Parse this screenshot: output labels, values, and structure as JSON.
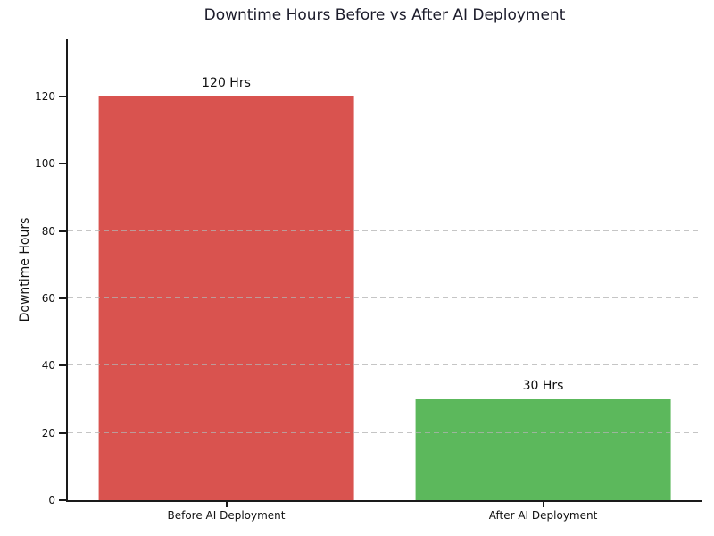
{
  "chart_data": {
    "type": "bar",
    "title": "Downtime Hours Before vs After AI Deployment",
    "categories": [
      "Before AI Deployment",
      "After AI Deployment"
    ],
    "values": [
      120,
      30
    ],
    "bar_labels": [
      "120 Hrs",
      "30 Hrs"
    ],
    "bar_colors": [
      "#d9534f",
      "#5cb85c"
    ],
    "xlabel": "",
    "ylabel": "Downtime Hours",
    "ylim": [
      0,
      137
    ],
    "yticks": [
      0,
      20,
      40,
      60,
      80,
      100,
      120
    ],
    "grid": "horizontal-dashed",
    "legend": "none"
  },
  "colors": {
    "background": "#ffffff",
    "bar_before": "#d9534f",
    "bar_after": "#5cb85c",
    "gridline": "#b2b2b2",
    "axis": "#1a1a1a",
    "title_text": "#1b1b2a",
    "text": "#111111"
  }
}
